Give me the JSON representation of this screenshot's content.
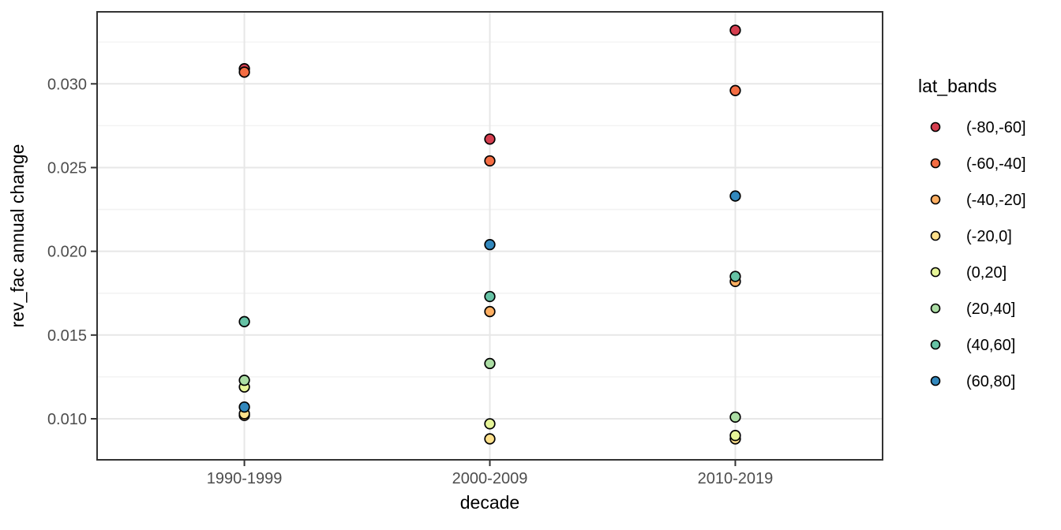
{
  "chart_data": {
    "type": "scatter",
    "title": "",
    "xlabel": "decade",
    "ylabel": "rev_fac annual change",
    "x_categories": [
      "1990-1999",
      "2000-2009",
      "2010-2019"
    ],
    "y_ticks": [
      0.01,
      0.015,
      0.02,
      0.025,
      0.03
    ],
    "y_tick_labels": [
      "0.010",
      "0.015",
      "0.020",
      "0.025",
      "0.030"
    ],
    "ylim": [
      0.00755,
      0.0343
    ],
    "grid": "major and minor horizontal, major vertical at categories",
    "legend_position": "right",
    "legend_title": "lat_bands",
    "point_shape": "circle, black outline, colored fill",
    "series": [
      {
        "name": "(-80,-60]",
        "color": "#D53E4F",
        "values": [
          0.0309,
          0.0267,
          0.0332
        ]
      },
      {
        "name": "(-60,-40]",
        "color": "#F46D43",
        "values": [
          0.0307,
          0.0254,
          0.0296
        ]
      },
      {
        "name": "(-40,-20]",
        "color": "#FDAE61",
        "values": [
          0.0102,
          0.0164,
          0.0182
        ]
      },
      {
        "name": "(-20,0]",
        "color": "#FEE08B",
        "values": [
          0.0103,
          0.0088,
          0.0088
        ]
      },
      {
        "name": "(0,20]",
        "color": "#E6F598",
        "values": [
          0.0119,
          0.0097,
          0.009
        ]
      },
      {
        "name": "(20,40]",
        "color": "#ABDDA4",
        "values": [
          0.0123,
          0.0133,
          0.0101
        ]
      },
      {
        "name": "(40,60]",
        "color": "#66C2A5",
        "values": [
          0.0158,
          0.0173,
          0.0185
        ]
      },
      {
        "name": "(60,80]",
        "color": "#3288BD",
        "values": [
          0.0107,
          0.0204,
          0.0233
        ]
      }
    ],
    "style_colors": {
      "grid_major": "#E7E7E7",
      "grid_minor": "#F2F2F2",
      "panel_border": "#333333",
      "tick_mark": "#333333",
      "tick_text": "#4d4d4d"
    }
  }
}
